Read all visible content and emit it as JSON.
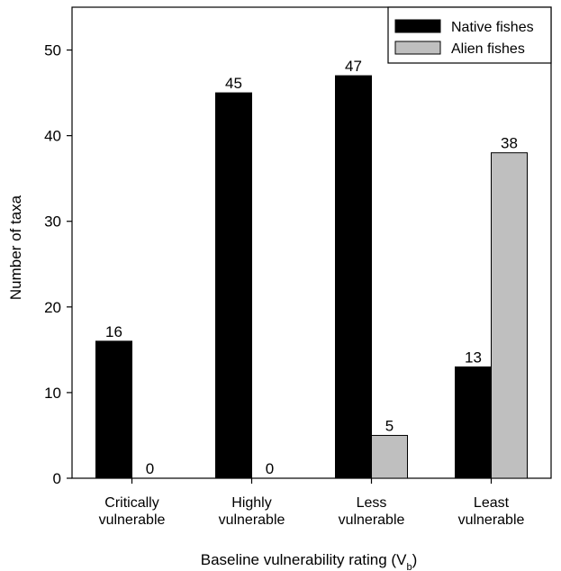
{
  "chart_data": {
    "type": "bar",
    "categories": [
      [
        "Critically",
        "vulnerable"
      ],
      [
        "Highly",
        "vulnerable"
      ],
      [
        "Less",
        "vulnerable"
      ],
      [
        "Least",
        "vulnerable"
      ]
    ],
    "series": [
      {
        "name": "Native fishes",
        "values": [
          16,
          45,
          47,
          13
        ],
        "color": "#000000"
      },
      {
        "name": "Alien fishes",
        "values": [
          0,
          0,
          5,
          38
        ],
        "color": "#bfbfbf"
      }
    ],
    "xlabel": "Baseline vulnerability rating (V",
    "xlabel_subscript": "b",
    "xlabel_suffix": ")",
    "ylabel": "Number of taxa",
    "ylim": [
      0,
      55
    ],
    "yticks": [
      0,
      10,
      20,
      30,
      40,
      50
    ],
    "grid": false,
    "legend_position": "top-right"
  }
}
